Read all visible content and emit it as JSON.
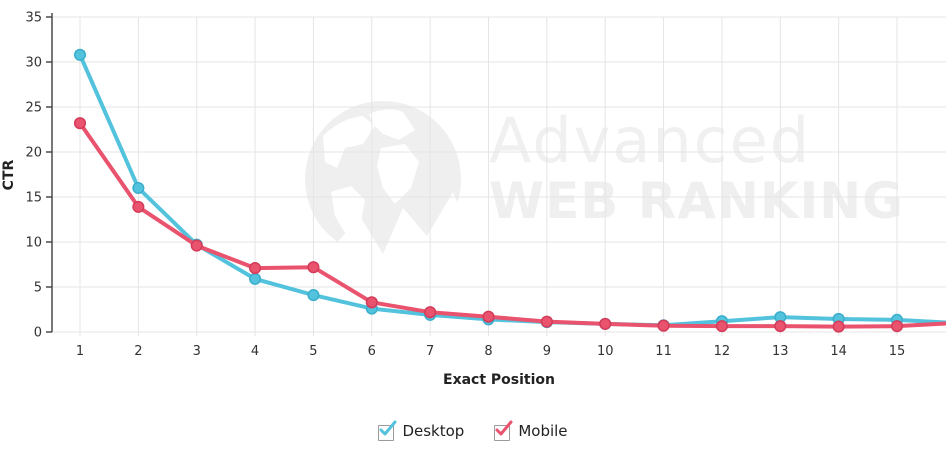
{
  "chart_data": {
    "type": "line",
    "title": "",
    "xlabel": "Exact Position",
    "ylabel": "CTR",
    "categories": [
      1,
      2,
      3,
      4,
      5,
      6,
      7,
      8,
      9,
      10,
      11,
      12,
      13,
      14,
      15
    ],
    "yticks": [
      0,
      5,
      10,
      15,
      20,
      25,
      30,
      35
    ],
    "ylim": [
      0,
      35
    ],
    "grid": true,
    "legend_position": "bottom",
    "series": [
      {
        "name": "Desktop",
        "color": "#53C3DD",
        "marker_edge": "#3BAECC",
        "values": [
          30.8,
          16.0,
          9.7,
          5.9,
          4.1,
          2.6,
          1.9,
          1.4,
          1.1,
          0.9,
          0.75,
          1.2,
          1.65,
          1.45,
          1.35
        ],
        "edge_extension": 1.05
      },
      {
        "name": "Mobile",
        "color": "#E9536E",
        "marker_edge": "#D43B59",
        "values": [
          23.2,
          13.9,
          9.6,
          7.1,
          7.2,
          3.3,
          2.2,
          1.7,
          1.15,
          0.9,
          0.7,
          0.65,
          0.65,
          0.6,
          0.65
        ],
        "edge_extension": 0.95
      }
    ],
    "colors": {
      "grid": "#e5e5e5",
      "axis": "#4a4a4a",
      "tick_label": "#333333"
    }
  },
  "watermark": {
    "line1": "Advanced",
    "line2": "WEB RANKING"
  }
}
